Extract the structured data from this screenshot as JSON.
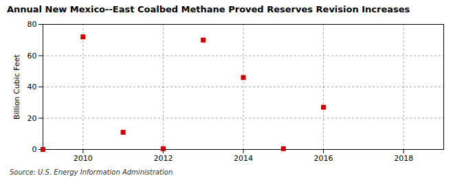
{
  "chart_data": {
    "type": "scatter",
    "title": "Annual New Mexico--East Coalbed Methane Proved Reserves Revision Increases",
    "ylabel": "Billion Cubic Feet",
    "source": "Source: U.S. Energy Information Administration",
    "x": [
      2009,
      2010,
      2011,
      2012,
      2013,
      2014,
      2015,
      2016
    ],
    "values": [
      0,
      72,
      11,
      0.5,
      70,
      46,
      0.5,
      27
    ],
    "color": "#CC0000",
    "marker": "square",
    "xlim": [
      2009,
      2019
    ],
    "xticks": [
      2010,
      2012,
      2014,
      2016,
      2018
    ],
    "ylim": [
      0,
      80
    ],
    "yticks": [
      0,
      20,
      40,
      60,
      80
    ],
    "grid": true
  }
}
